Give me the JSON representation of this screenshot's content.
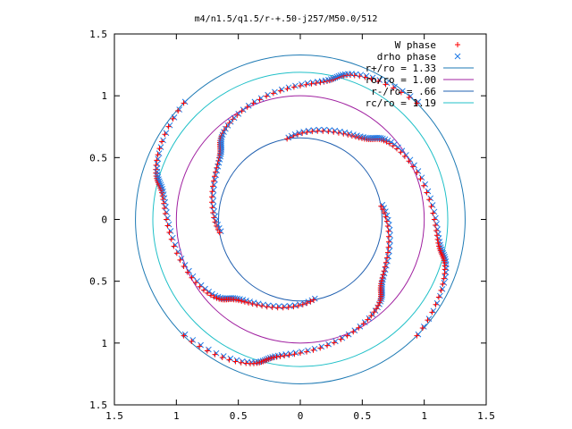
{
  "chart_data": {
    "type": "scatter",
    "title": "m4/n1.5/q1.5/r-+.50-j257/M50.0/512",
    "xlim": [
      -1.5,
      1.5
    ],
    "ylim": [
      -1.5,
      1.5
    ],
    "x_ticks": [
      -1.5,
      -1,
      -0.5,
      0,
      0.5,
      1,
      1.5
    ],
    "x_tick_labels": [
      "1.5",
      "1",
      "0.5",
      "0",
      "0.5",
      "1",
      "1.5"
    ],
    "y_ticks": [
      1.5,
      1,
      0.5,
      0,
      -0.5,
      -1,
      -1.5
    ],
    "y_tick_labels": [
      "1.5",
      "1",
      "0.5",
      "0",
      "0.5",
      "1",
      "1.5"
    ],
    "grid": false,
    "legend_position": "top-right",
    "series": [
      {
        "name": "W phase",
        "marker": "plus",
        "color": "#ff0000"
      },
      {
        "name": "drho phase",
        "marker": "cross",
        "color": "#1e7ae6"
      }
    ],
    "circles": [
      {
        "name": "r+/ro = 1.33",
        "r": 1.33,
        "color": "#1e7ab4"
      },
      {
        "name": "ro/ro = 1.00",
        "r": 1.0,
        "color": "#a020a0"
      },
      {
        "name": "r-/ro = .66",
        "r": 0.66,
        "color": "#2060b0"
      },
      {
        "name": "rc/ro = 1.19",
        "r": 1.19,
        "color": "#20c0c8"
      }
    ],
    "arms": {
      "count": 4,
      "radius_range": [
        0.66,
        1.33
      ],
      "phase_offsets_deg": [
        0,
        90,
        180,
        270
      ]
    }
  }
}
